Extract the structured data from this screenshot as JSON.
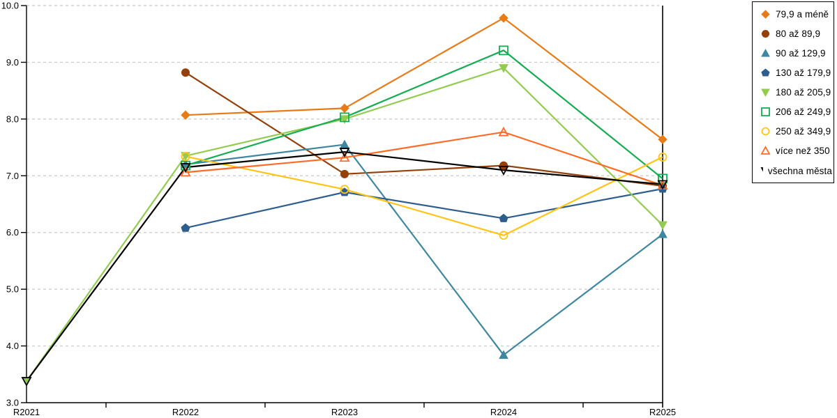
{
  "chart_data": {
    "type": "line",
    "title": "",
    "xlabel": "",
    "ylabel": "",
    "categories": [
      "R2021",
      "R2022",
      "R2023",
      "R2024",
      "R2025"
    ],
    "series": [
      {
        "name": "79,9 a méně",
        "color": "#E97B17",
        "marker": "diamond",
        "filled": true,
        "values": [
          null,
          8.07,
          8.19,
          9.78,
          7.64
        ]
      },
      {
        "name": "80 až 89,9",
        "color": "#95400A",
        "marker": "circle",
        "filled": true,
        "values": [
          null,
          8.82,
          7.03,
          7.18,
          6.82
        ]
      },
      {
        "name": "90 až 129,9",
        "color": "#3E87A0",
        "marker": "triangle-up",
        "filled": true,
        "values": [
          null,
          7.2,
          7.55,
          3.84,
          5.97
        ]
      },
      {
        "name": "130 až 179,9",
        "color": "#2E5E8E",
        "marker": "pentagon",
        "filled": true,
        "values": [
          null,
          6.08,
          6.71,
          6.25,
          6.77
        ]
      },
      {
        "name": "180 až 205,9",
        "color": "#92CC4E",
        "marker": "triangle-down",
        "filled": true,
        "values": [
          3.38,
          7.35,
          8.0,
          8.9,
          6.13
        ]
      },
      {
        "name": "206 až 249,9",
        "color": "#14AD52",
        "marker": "square",
        "filled": false,
        "values": [
          null,
          7.18,
          8.03,
          9.21,
          6.95
        ]
      },
      {
        "name": "250 až 349,9",
        "color": "#FFC414",
        "marker": "circle",
        "filled": false,
        "values": [
          null,
          7.34,
          6.76,
          5.95,
          7.33
        ]
      },
      {
        "name": "více než 350",
        "color": "#FF6B26",
        "marker": "triangle-up",
        "filled": false,
        "values": [
          null,
          7.06,
          7.32,
          7.77,
          6.83
        ]
      },
      {
        "name": "všechna města",
        "color": "#000000",
        "marker": "triangle-down",
        "filled": false,
        "values": [
          3.38,
          7.15,
          7.42,
          7.1,
          6.85
        ]
      }
    ],
    "ylim": [
      3.0,
      10.0
    ],
    "ytick_step": 1.0,
    "ytick_labels": [
      "10.0",
      "9.0",
      "8.0",
      "7.0",
      "6.0",
      "5.0",
      "4.0",
      "3.0"
    ],
    "grid": "horizontal-dashed",
    "grid_color": "#c9c9c9",
    "axis_color": "#000000",
    "legend_position": "right"
  }
}
